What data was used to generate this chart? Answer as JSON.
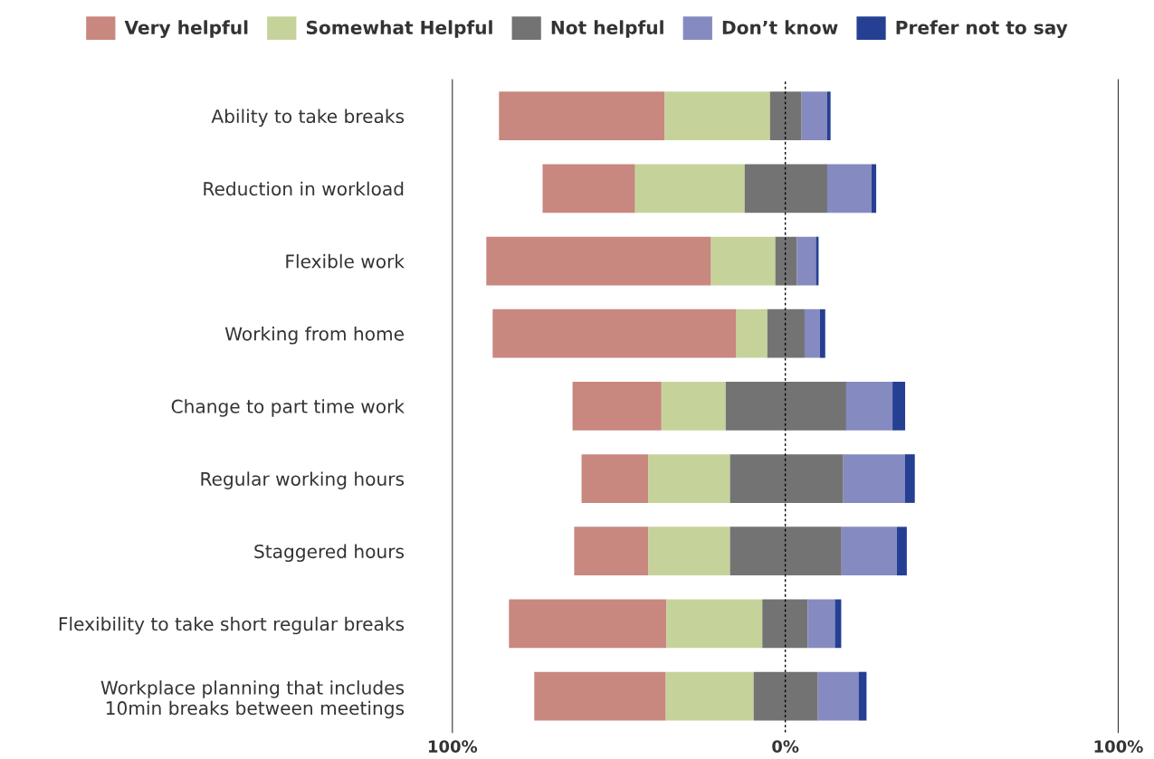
{
  "chart_data": {
    "type": "bar",
    "orientation": "horizontal",
    "categories": [
      "Ability to take breaks",
      "Reduction in workload",
      "Flexible work",
      "Working from home",
      "Change to part time work",
      "Regular working hours",
      "Staggered hours",
      "Flexibility to take short regular breaks",
      "Workplace planning that includes\n10min breaks between meetings"
    ],
    "series": [
      {
        "name": "Very helpful",
        "color": "#c8877f",
        "values": [
          49.8,
          27.8,
          67.5,
          73.2,
          26.7,
          20.1,
          22.3,
          47.3,
          39.5
        ],
        "base": [
          -86.0,
          -72.9,
          -89.8,
          -87.9,
          -63.9,
          -61.2,
          -63.4,
          -83.0,
          -75.4
        ]
      },
      {
        "name": "Somewhat Helpful",
        "color": "#c5d39a",
        "values": [
          31.6,
          32.9,
          19.3,
          9.3,
          19.3,
          24.5,
          24.5,
          28.8,
          26.4
        ],
        "base": [
          -36.2,
          -45.1,
          -22.3,
          -14.7,
          -37.2,
          -41.1,
          -41.1,
          -35.7,
          -35.9
        ]
      },
      {
        "name": "Not helpful",
        "color": "#737373",
        "values": [
          9.5,
          24.8,
          6.5,
          11.2,
          36.2,
          34.0,
          33.5,
          13.6,
          19.3
        ],
        "base": [
          -4.6,
          -12.2,
          -3.0,
          -5.4,
          -17.9,
          -16.6,
          -16.6,
          -6.9,
          -9.5
        ]
      },
      {
        "name": "Don’t know",
        "color": "#858ac0",
        "values": [
          7.6,
          13.3,
          5.7,
          4.6,
          13.9,
          18.5,
          16.6,
          8.2,
          12.2
        ],
        "base": [
          4.9,
          12.6,
          3.5,
          5.8,
          18.3,
          17.4,
          16.9,
          6.7,
          9.8
        ]
      },
      {
        "name": "Prefer not to say",
        "color": "#253f93",
        "values": [
          1.1,
          1.4,
          0.8,
          1.6,
          3.8,
          3.0,
          3.0,
          1.9,
          2.4
        ],
        "base": [
          12.5,
          25.9,
          9.2,
          10.4,
          32.2,
          35.9,
          33.5,
          14.9,
          22.0
        ]
      }
    ],
    "xlim": [
      -100,
      100
    ],
    "xticks": [
      {
        "value": -100,
        "label": "100%"
      },
      {
        "value": 0,
        "label": "0%"
      },
      {
        "value": 100,
        "label": "100%"
      }
    ],
    "ref_lines": [
      {
        "axis": "x",
        "value": 0,
        "label": null,
        "color": "#000000",
        "line_style": "dotted"
      }
    ],
    "grid": false,
    "legend": "top"
  }
}
